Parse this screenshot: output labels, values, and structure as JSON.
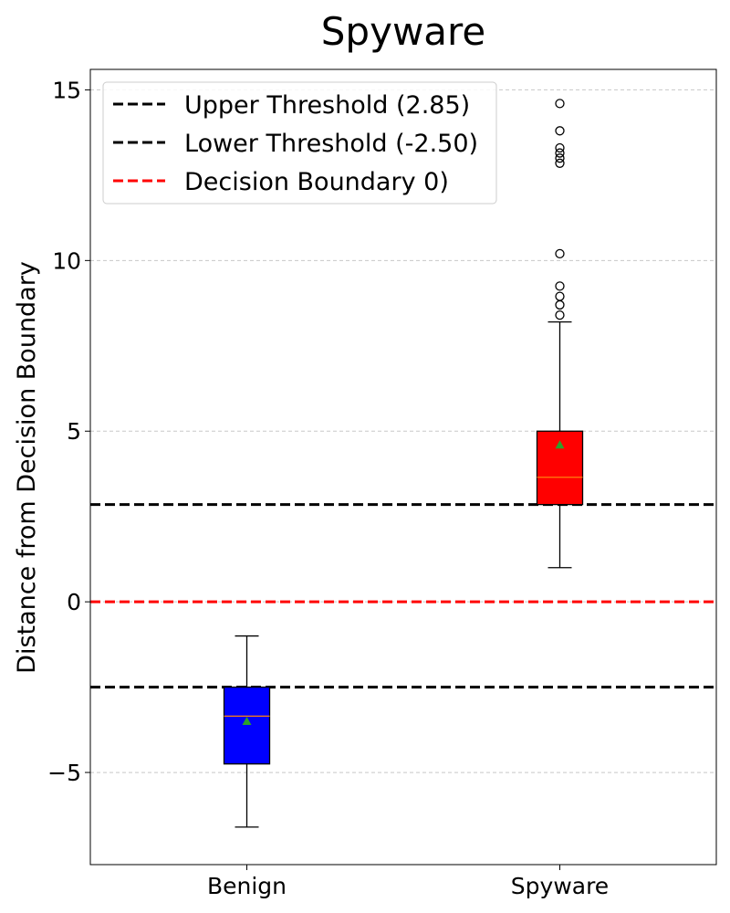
{
  "chart_data": {
    "type": "box",
    "title": "Spyware",
    "xlabel": "",
    "ylabel": "Distance from Decision Boundary",
    "ylim": [
      -7.7,
      15.6
    ],
    "yticks": [
      -5,
      0,
      5,
      10,
      15
    ],
    "ytick_labels": [
      "−5",
      "0",
      "5",
      "10",
      "15"
    ],
    "grid": "y-dashed",
    "categories": [
      "Benign",
      "Spyware"
    ],
    "boxes": [
      {
        "name": "Benign",
        "color": "#0000ff",
        "whisker_low": -6.6,
        "q1": -4.75,
        "median": -3.35,
        "q3": -2.5,
        "whisker_high": -1.0,
        "mean": -3.5,
        "outliers": []
      },
      {
        "name": "Spyware",
        "color": "#ff0000",
        "whisker_low": 1.0,
        "q1": 2.85,
        "median": 3.65,
        "q3": 5.0,
        "whisker_high": 8.2,
        "mean": 4.6,
        "outliers": [
          8.4,
          8.7,
          8.95,
          9.25,
          10.2,
          12.85,
          13.0,
          13.15,
          13.3,
          13.8,
          14.6
        ]
      }
    ],
    "reference_lines": [
      {
        "label": "Upper Threshold (2.85)",
        "y": 2.85,
        "color": "#000000",
        "style": "dashed"
      },
      {
        "label": "Lower Threshold (-2.50)",
        "y": -2.5,
        "color": "#000000",
        "style": "dashed"
      },
      {
        "label": "Decision Boundary 0)",
        "y": 0,
        "color": "#ff0000",
        "style": "dashed"
      }
    ],
    "legend_position": "top-left",
    "colors": {
      "median": "#ff7f0e",
      "mean_marker": "#2ca02c",
      "grid": "#c8c8c8"
    }
  }
}
